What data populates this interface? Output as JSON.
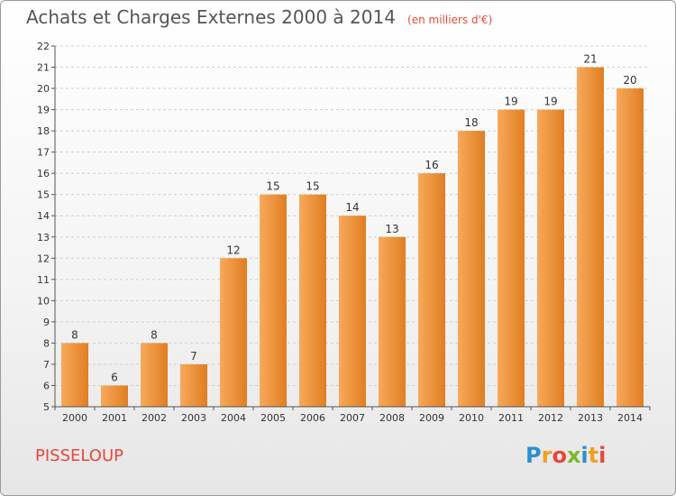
{
  "header": {
    "title": "Achats et Charges Externes 2000 à 2014",
    "unit": "(en milliers d'€)"
  },
  "footer": {
    "commune": "PISSELOUP",
    "logo_letters": [
      "P",
      "r",
      "o",
      "x",
      "i",
      "t",
      "i"
    ],
    "logo_colors": [
      "#2b8fd0",
      "#f0a01e",
      "#e8473a",
      "#7ab929",
      "#2b8fd0",
      "#f0a01e",
      "#e8473a"
    ]
  },
  "colors": {
    "bar_light": "#f7a95a",
    "bar_dark": "#e07e22",
    "grid": "#cfcfcf",
    "axis": "#555555"
  },
  "chart_data": {
    "type": "bar",
    "title": "Achats et Charges Externes 2000 à 2014",
    "xlabel": "",
    "ylabel": "",
    "categories": [
      "2000",
      "2001",
      "2002",
      "2003",
      "2004",
      "2005",
      "2006",
      "2007",
      "2008",
      "2009",
      "2010",
      "2011",
      "2012",
      "2013",
      "2014"
    ],
    "values": [
      8,
      6,
      8,
      7,
      12,
      15,
      15,
      14,
      13,
      16,
      18,
      19,
      19,
      21,
      20
    ],
    "ylim": [
      5,
      22
    ],
    "yticks": [
      5,
      6,
      7,
      8,
      9,
      10,
      11,
      12,
      13,
      14,
      15,
      16,
      17,
      18,
      19,
      20,
      21,
      22
    ],
    "grid": "horizontal dashed",
    "legend": "none"
  }
}
